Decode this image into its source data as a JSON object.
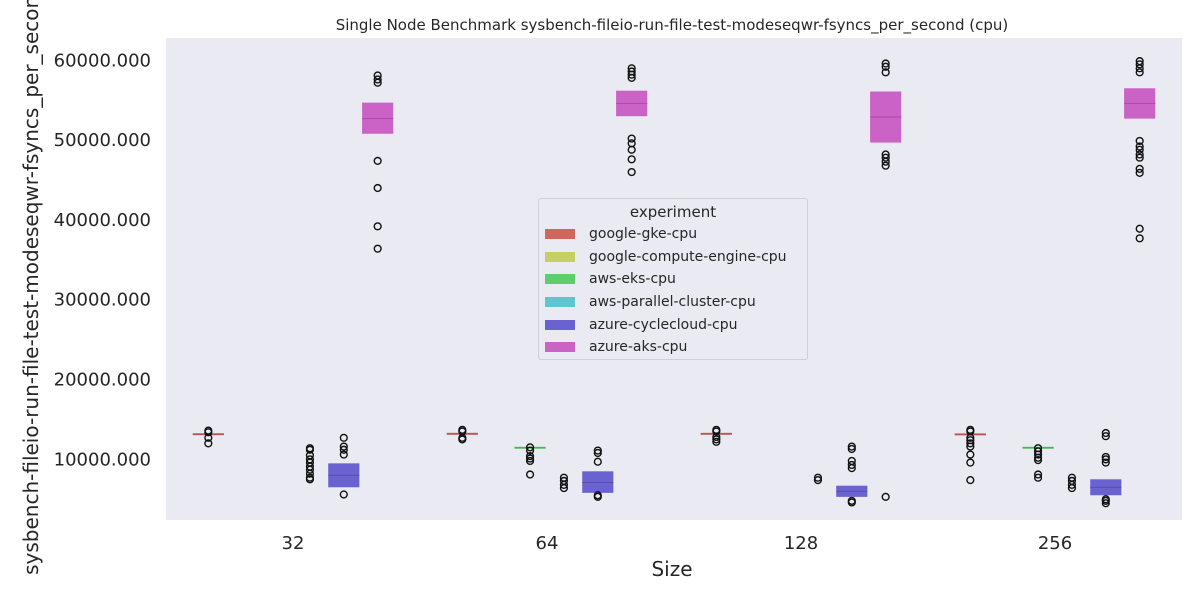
{
  "chart_data": {
    "type": "box",
    "title": "Single Node Benchmark sysbench-fileio-run-file-test-modeseqwr-fsyncs_per_second (cpu)",
    "xlabel": "Size",
    "ylabel": "sysbench-fileio-run-file-test-modeseqwr-fsyncs_per_second",
    "categories": [
      "32",
      "64",
      "128",
      "256"
    ],
    "ylim": [
      2400,
      62800
    ],
    "yticks": [
      10000,
      20000,
      30000,
      40000,
      50000,
      60000
    ],
    "ytick_format_decimals": 3,
    "grid": false,
    "legend_title": "experiment",
    "legend_position": "center",
    "series": [
      {
        "name": "google-gke-cpu",
        "color": "#d1665e",
        "boxes": [
          {
            "category": "32",
            "q1": 13050,
            "median": 13150,
            "q3": 13250,
            "outliers": [
              12000,
              12700,
              13400,
              13600
            ]
          },
          {
            "category": "64",
            "q1": 13100,
            "median": 13200,
            "q3": 13300,
            "outliers": [
              12500,
              12700,
              13500,
              13700
            ]
          },
          {
            "category": "128",
            "q1": 13100,
            "median": 13200,
            "q3": 13300,
            "outliers": [
              12200,
              12500,
              12800,
              13500,
              13700
            ]
          },
          {
            "category": "256",
            "q1": 13000,
            "median": 13150,
            "q3": 13250,
            "outliers": [
              7400,
              9600,
              10600,
              11600,
              12000,
              12400,
              12700,
              13500,
              13700
            ]
          }
        ]
      },
      {
        "name": "google-compute-engine-cpu",
        "color": "#c6cf61",
        "boxes": []
      },
      {
        "name": "aws-eks-cpu",
        "color": "#5fce6a",
        "boxes": [
          {
            "category": "64",
            "q1": 11350,
            "median": 11450,
            "q3": 11550,
            "outliers": [
              8100,
              9800,
              10100,
              10400,
              11100,
              11500
            ]
          },
          {
            "category": "256",
            "q1": 11350,
            "median": 11450,
            "q3": 11550,
            "outliers": [
              7700,
              8100,
              9900,
              10200,
              10600,
              11000,
              11400
            ]
          }
        ]
      },
      {
        "name": "aws-parallel-cluster-cpu",
        "color": "#61c5cf",
        "boxes": [
          {
            "category": "32",
            "q1": null,
            "median": null,
            "q3": null,
            "outliers": [
              7500,
              7700,
              8200,
              8700,
              9100,
              9600,
              10000,
              10500,
              11200,
              11400
            ]
          },
          {
            "category": "64",
            "q1": null,
            "median": null,
            "q3": null,
            "outliers": [
              6400,
              6800,
              7300,
              7700
            ]
          },
          {
            "category": "128",
            "q1": null,
            "median": null,
            "q3": null,
            "outliers": [
              7400,
              7700
            ]
          },
          {
            "category": "256",
            "q1": null,
            "median": null,
            "q3": null,
            "outliers": [
              6400,
              6800,
              7300,
              7700
            ]
          }
        ]
      },
      {
        "name": "azure-cyclecloud-cpu",
        "color": "#6b62d2",
        "boxes": [
          {
            "category": "32",
            "q1": 6500,
            "median": 8000,
            "q3": 9500,
            "outliers": [
              5600,
              10600,
              11200,
              11600,
              12700
            ]
          },
          {
            "category": "64",
            "q1": 5800,
            "median": 7100,
            "q3": 8500,
            "outliers": [
              5300,
              5500,
              9700,
              10800,
              11100
            ]
          },
          {
            "category": "128",
            "q1": 5300,
            "median": 6000,
            "q3": 6700,
            "outliers": [
              4600,
              4800,
              8900,
              9300,
              9800,
              11300,
              11600
            ]
          },
          {
            "category": "256",
            "q1": 5500,
            "median": 6500,
            "q3": 7500,
            "outliers": [
              4500,
              4800,
              5000,
              9600,
              10000,
              10300,
              12900,
              13300
            ]
          }
        ]
      },
      {
        "name": "azure-aks-cpu",
        "color": "#cb63c7",
        "boxes": [
          {
            "category": "32",
            "q1": 50800,
            "median": 52700,
            "q3": 54700,
            "outliers": [
              36400,
              39200,
              44000,
              47400,
              57200,
              57600,
              58100
            ]
          },
          {
            "category": "64",
            "q1": 53000,
            "median": 54600,
            "q3": 56200,
            "outliers": [
              46000,
              47600,
              48800,
              49600,
              50200,
              57800,
              58200,
              58600,
              59000
            ]
          },
          {
            "category": "128",
            "q1": 49700,
            "median": 52900,
            "q3": 56100,
            "outliers": [
              5300,
              46800,
              47300,
              47800,
              48200,
              58500,
              59200,
              59600
            ]
          },
          {
            "category": "256",
            "q1": 52700,
            "median": 54600,
            "q3": 56500,
            "outliers": [
              37700,
              38900,
              45900,
              46400,
              47800,
              48200,
              48800,
              49200,
              49900,
              58500,
              59000,
              59500,
              59900
            ]
          }
        ]
      }
    ]
  }
}
